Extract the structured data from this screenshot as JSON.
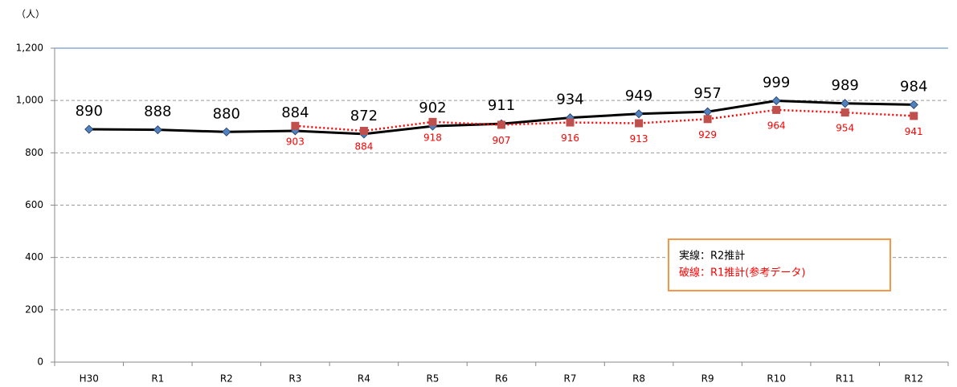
{
  "chart_data": {
    "type": "line",
    "y_axis_label": "（人）",
    "categories": [
      "H30",
      "R1",
      "R2",
      "R3",
      "R4",
      "R5",
      "R6",
      "R7",
      "R8",
      "R9",
      "R10",
      "R11",
      "R12"
    ],
    "series": [
      {
        "name": "実線：R2推計",
        "color": "#000000",
        "marker_color": "#4f81bd",
        "marker": "diamond",
        "line_style": "solid",
        "values": [
          890,
          888,
          880,
          884,
          872,
          902,
          911,
          934,
          949,
          957,
          999,
          989,
          984
        ]
      },
      {
        "name": "破線：R1推計(参考データ)",
        "color": "#ff0000",
        "marker_color": "#c0504d",
        "marker": "square",
        "line_style": "dotted",
        "values": [
          null,
          null,
          null,
          903,
          884,
          918,
          907,
          916,
          913,
          929,
          964,
          954,
          941
        ]
      }
    ],
    "ylim": [
      0,
      1200
    ],
    "yticks": [
      0,
      200,
      400,
      600,
      800,
      {
        "value": 1000,
        "label": "1,000"
      },
      {
        "value": 1200,
        "label": "1,200"
      }
    ],
    "grid": true,
    "legend_position": "lower right"
  }
}
